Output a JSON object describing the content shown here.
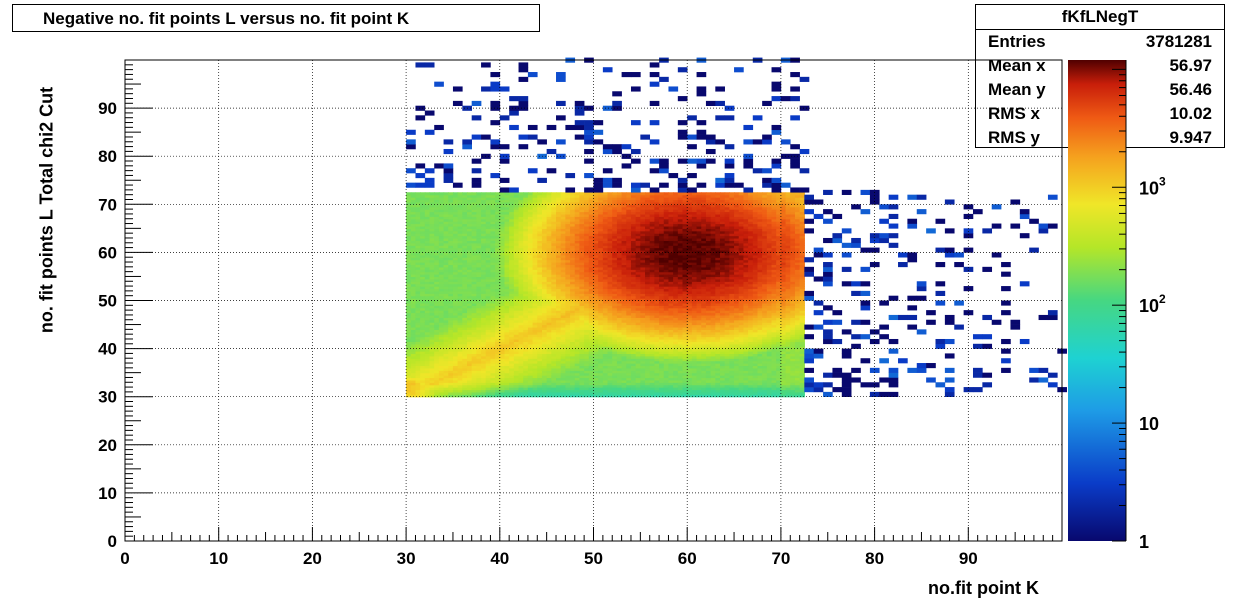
{
  "title": "Negative no. fit points L versus no. fit point K",
  "stats": {
    "name": "fKfLNegT",
    "rows": [
      {
        "label": "Entries",
        "value": "3781281"
      },
      {
        "label": "Mean x",
        "value": "56.97"
      },
      {
        "label": "Mean y",
        "value": "56.46"
      },
      {
        "label": "RMS x",
        "value": "10.02"
      },
      {
        "label": "RMS y",
        "value": "9.947"
      }
    ]
  },
  "chart_data": {
    "type": "heatmap",
    "title": "Negative no. fit points L versus no. fit point K",
    "xlabel": "no.fit point K",
    "ylabel": "no. fit points  L   Total chi2 Cut",
    "xlim": [
      0,
      100
    ],
    "ylim": [
      0,
      100
    ],
    "x_ticks": [
      0,
      10,
      20,
      30,
      40,
      50,
      60,
      70,
      80,
      90
    ],
    "y_ticks": [
      0,
      10,
      20,
      30,
      40,
      50,
      60,
      70,
      80,
      90
    ],
    "grid": true,
    "z_scale": "log",
    "z_range": [
      1,
      12000
    ],
    "colorbar_labels": [
      {
        "text": "1",
        "exp": "",
        "z": 1
      },
      {
        "text": "10",
        "exp": "",
        "z": 10
      },
      {
        "text": "10",
        "exp": "2",
        "z": 100
      },
      {
        "text": "10",
        "exp": "3",
        "z": 1000
      }
    ],
    "dense_region": {
      "x": [
        30,
        72.5
      ],
      "y": [
        30,
        72.5
      ]
    },
    "peak": {
      "x": 60,
      "y": 60,
      "z": 12000
    },
    "sparse_regions": [
      {
        "x": [
          30,
          72.5
        ],
        "y": [
          72.5,
          100
        ],
        "description": "scattered low-count bins (1-5)"
      },
      {
        "x": [
          72.5,
          100
        ],
        "y": [
          30,
          72.5
        ],
        "description": "scattered low-count bins (1-5)"
      }
    ]
  }
}
